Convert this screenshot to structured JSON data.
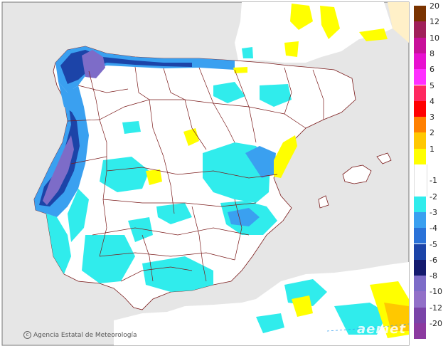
{
  "credit": {
    "text": "Agencia Estatal de Meteorología",
    "icon": "copyright-icon"
  },
  "logo": {
    "text": "aemet"
  },
  "legend": {
    "items": [
      {
        "label": "20",
        "color": "#7a3300"
      },
      {
        "label": "12",
        "color": "#a0205a"
      },
      {
        "label": "10",
        "color": "#c8109a"
      },
      {
        "label": "8",
        "color": "#e810d0"
      },
      {
        "label": "6",
        "color": "#ff30ff"
      },
      {
        "label": "5",
        "color": "#ff2860"
      },
      {
        "label": "4",
        "color": "#ff0000"
      },
      {
        "label": "3",
        "color": "#ff8000"
      },
      {
        "label": "2",
        "color": "#ffc800"
      },
      {
        "label": "1",
        "color": "#ffff00"
      },
      {
        "label": "",
        "color": "#ffffff"
      },
      {
        "label": "-1",
        "color": "#ffffff"
      },
      {
        "label": "-2",
        "color": "#30ecec"
      },
      {
        "label": "-3",
        "color": "#3aa0f0"
      },
      {
        "label": "-4",
        "color": "#2a72d8"
      },
      {
        "label": "-5",
        "color": "#1c44a8"
      },
      {
        "label": "-6",
        "color": "#141a6e"
      },
      {
        "label": "-8",
        "color": "#7d6cc8"
      },
      {
        "label": "-10",
        "color": "#9270c8"
      },
      {
        "label": "-12",
        "color": "#7a44a8"
      },
      {
        "label": "-20",
        "color": "#8c3aa0"
      }
    ]
  },
  "colors": {
    "sea": "#e6e6e6",
    "land": "#ffffff",
    "border": "#7a1a1a",
    "positive": "#ffff00",
    "negative_light": "#30ecec",
    "negative_mid": "#3aa0f0",
    "negative_dark": "#7d6cc8"
  }
}
